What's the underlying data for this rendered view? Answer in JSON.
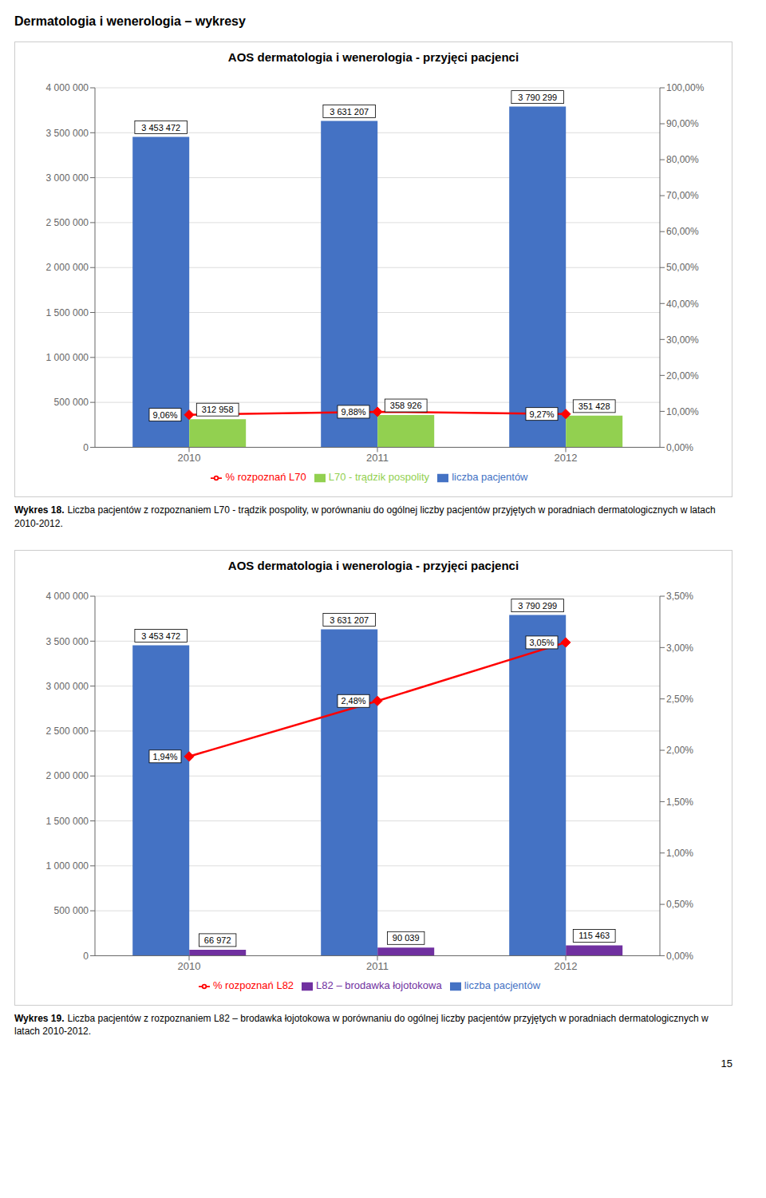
{
  "title": "Dermatologia i wenerologia – wykresy",
  "annotations": [
    "15"
  ],
  "chart_data": [
    {
      "type": "bar",
      "title": "AOS dermatologia i wenerologia - przyjęci pacjenci",
      "categories": [
        "2010",
        "2011",
        "2012"
      ],
      "series": [
        {
          "name": "liczba pacjentów",
          "type": "bar",
          "color": "#4472C4",
          "values": [
            3453472,
            3631207,
            3790299
          ],
          "value_labels": [
            "3 453 472",
            "3 631 207",
            "3 790 299"
          ]
        },
        {
          "name": "L70 - trądzik pospolity",
          "type": "bar",
          "color": "#92D050",
          "values": [
            312958,
            358926,
            351428
          ],
          "value_labels": [
            "312 958",
            "358 926",
            "351 428"
          ]
        },
        {
          "name": "% rozpoznań L70",
          "type": "line",
          "axis": "y2",
          "color": "#FF0000",
          "marker": "diamond",
          "values": [
            9.06,
            9.88,
            9.27
          ],
          "value_labels": [
            "9,06%",
            "9,88%",
            "9,27%"
          ]
        }
      ],
      "ylim": [
        0,
        4000000
      ],
      "yticks": [
        0,
        {
          "value": 500000,
          "label": "500 000"
        },
        {
          "value": 1000000,
          "label": "1 000 000"
        },
        {
          "value": 1500000,
          "label": "1 500 000"
        },
        {
          "value": 2000000,
          "label": "2 000 000"
        },
        {
          "value": 2500000,
          "label": "2 500 000"
        },
        {
          "value": 3000000,
          "label": "3 000 000"
        },
        {
          "value": 3500000,
          "label": "3 500 000"
        },
        {
          "value": 4000000,
          "label": "4 000 000"
        }
      ],
      "y2lim": [
        0,
        100
      ],
      "y2ticks": [
        {
          "value": 0,
          "label": "0,00%"
        },
        {
          "value": 10,
          "label": "10,00%"
        },
        {
          "value": 20,
          "label": "20,00%"
        },
        {
          "value": 30,
          "label": "30,00%"
        },
        {
          "value": 40,
          "label": "40,00%"
        },
        {
          "value": 50,
          "label": "50,00%"
        },
        {
          "value": 60,
          "label": "60,00%"
        },
        {
          "value": 70,
          "label": "70,00%"
        },
        {
          "value": 80,
          "label": "80,00%"
        },
        {
          "value": 90,
          "label": "90,00%"
        },
        {
          "value": 100,
          "label": "100,00%"
        }
      ],
      "grid": true,
      "legend": "bottom",
      "data_labels": true,
      "annotations": [
        "Wykres 18.",
        "Liczba pacjentów z rozpoznaniem L70 - trądzik pospolity, w porównaniu do ogólnej liczby pacjentów przyjętych w poradniach dermatologicznych w latach 2010-2012."
      ]
    },
    {
      "type": "bar",
      "title": "AOS dermatologia i wenerologia - przyjęci pacjenci",
      "categories": [
        "2010",
        "2011",
        "2012"
      ],
      "series": [
        {
          "name": "liczba pacjentów",
          "type": "bar",
          "color": "#4472C4",
          "values": [
            3453472,
            3631207,
            3790299
          ],
          "value_labels": [
            "3 453 472",
            "3 631 207",
            "3 790 299"
          ]
        },
        {
          "name": "L82 – brodawka łojotokowa",
          "type": "bar",
          "color": "#7030A0",
          "values": [
            66972,
            90039,
            115463
          ],
          "value_labels": [
            "66 972",
            "90 039",
            "115 463"
          ]
        },
        {
          "name": "% rozpoznań L82",
          "type": "line",
          "axis": "y2",
          "color": "#FF0000",
          "marker": "diamond",
          "values": [
            1.94,
            2.48,
            3.05
          ],
          "value_labels": [
            "1,94%",
            "2,48%",
            "3,05%"
          ]
        }
      ],
      "ylim": [
        0,
        4000000
      ],
      "yticks": [
        0,
        {
          "value": 500000,
          "label": "500 000"
        },
        {
          "value": 1000000,
          "label": "1 000 000"
        },
        {
          "value": 1500000,
          "label": "1 500 000"
        },
        {
          "value": 2000000,
          "label": "2 000 000"
        },
        {
          "value": 2500000,
          "label": "2 500 000"
        },
        {
          "value": 3000000,
          "label": "3 000 000"
        },
        {
          "value": 3500000,
          "label": "3 500 000"
        },
        {
          "value": 4000000,
          "label": "4 000 000"
        }
      ],
      "y2lim": [
        0,
        3.5
      ],
      "y2ticks": [
        {
          "value": 0.0,
          "label": "0,00%"
        },
        {
          "value": 0.5,
          "label": "0,50%"
        },
        {
          "value": 1.0,
          "label": "1,00%"
        },
        {
          "value": 1.5,
          "label": "1,50%"
        },
        {
          "value": 2.0,
          "label": "2,00%"
        },
        {
          "value": 2.5,
          "label": "2,50%"
        },
        {
          "value": 3.0,
          "label": "3,00%"
        },
        {
          "value": 3.5,
          "label": "3,50%"
        }
      ],
      "grid": true,
      "legend": "bottom",
      "data_labels": true,
      "annotations": [
        "Wykres 19.",
        "Liczba pacjentów z rozpoznaniem L82 – brodawka łojotokowa w porównaniu do ogólnej liczby pacjentów przyjętych w poradniach dermatologicznych w latach 2010-2012."
      ]
    }
  ]
}
